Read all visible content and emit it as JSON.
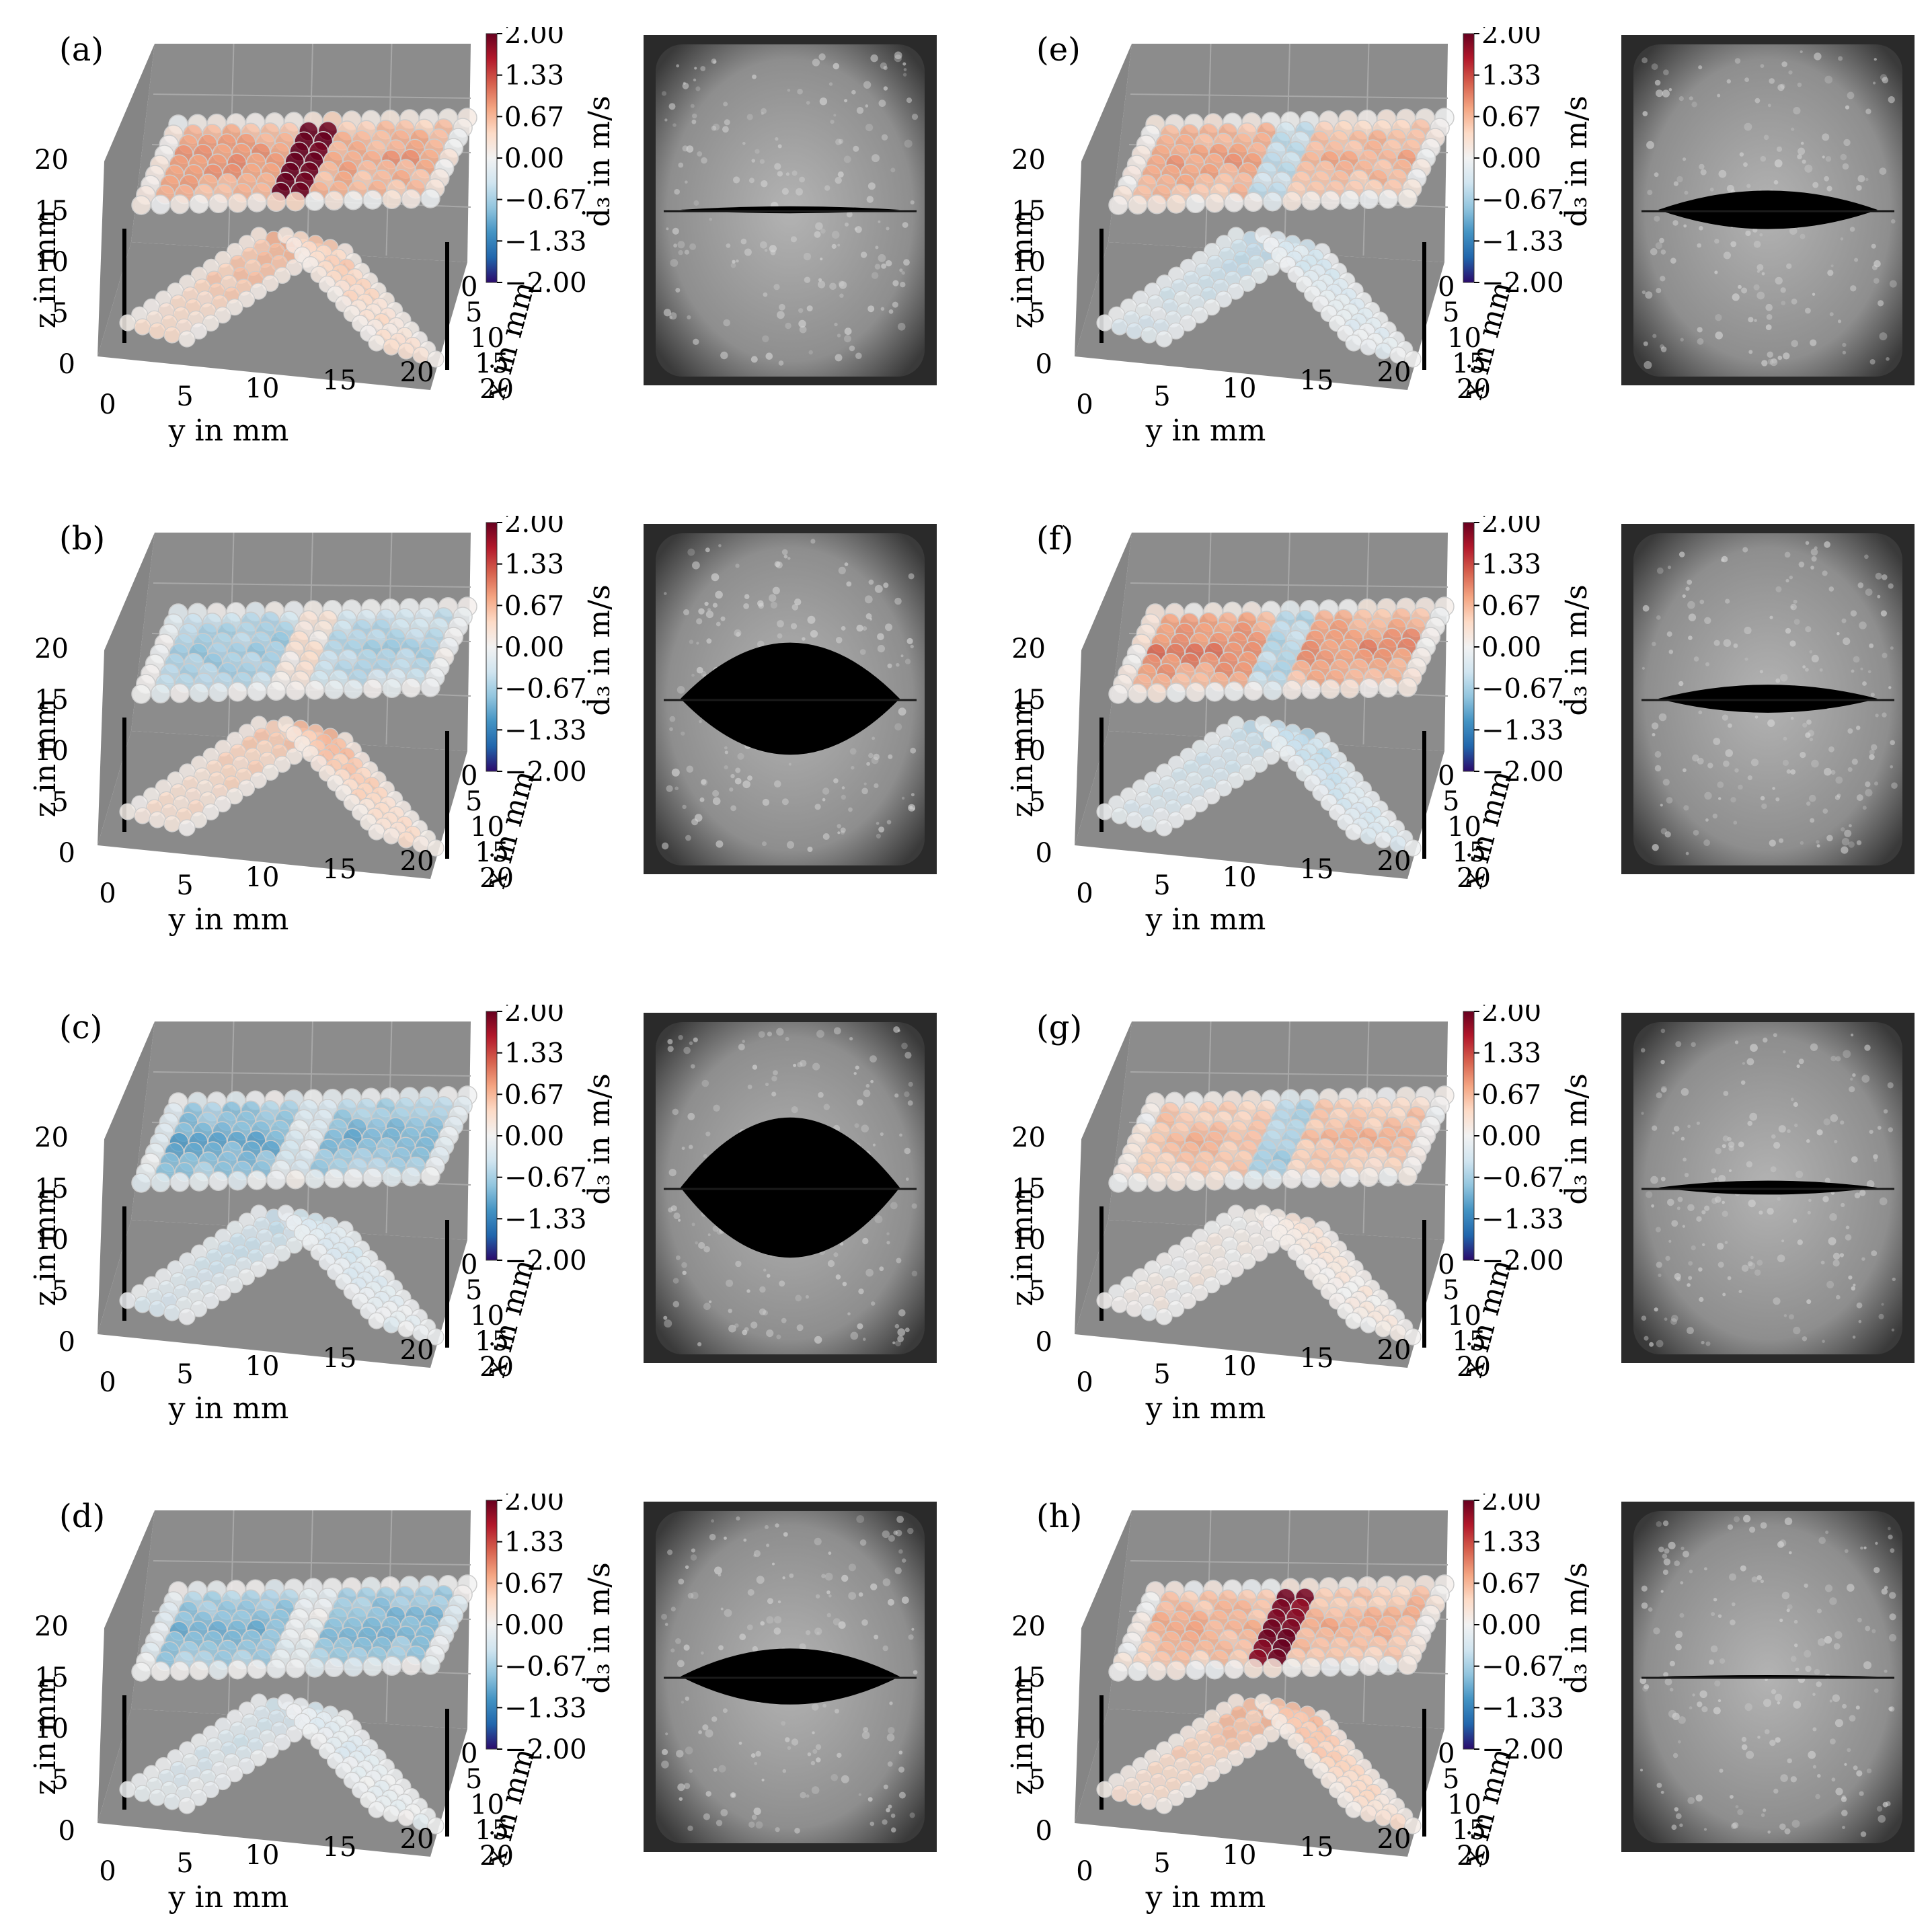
{
  "colormap": {
    "colors": [
      "#2b0a6b",
      "#2166ac",
      "#4393c3",
      "#92c5de",
      "#d1e5f0",
      "#f2f2f2",
      "#fddbc7",
      "#f4a582",
      "#d6604d",
      "#b2182b",
      "#67001f"
    ]
  },
  "chart_data": [
    {
      "panel": "(a)",
      "type": "scatter3d",
      "xlabel": "x in mm",
      "ylabel": "y in mm",
      "zlabel": "z in mm",
      "xticks": [
        "0",
        "5",
        "10",
        "15",
        "20"
      ],
      "yticks": [
        "0",
        "5",
        "10",
        "15",
        "20"
      ],
      "zticks": [
        "0",
        "5",
        "10",
        "15",
        "20"
      ],
      "colorbar": {
        "label": "ḋ₃ in m/s",
        "ticks": [
          "2.00",
          "1.33",
          "0.67",
          "0.00",
          "−0.67",
          "−1.33",
          "−2.00"
        ],
        "range": [
          -2,
          2
        ]
      },
      "values": {
        "top_left": 0.9,
        "top_right": 0.8,
        "center": 2.0,
        "low_left": 0.6,
        "low_right": 0.5
      },
      "photo": {
        "gap": 0.02
      }
    },
    {
      "panel": "(b)",
      "type": "scatter3d",
      "xlabel": "x in mm",
      "ylabel": "y in mm",
      "zlabel": "z in mm",
      "xticks": [
        "0",
        "5",
        "10",
        "15",
        "20"
      ],
      "yticks": [
        "0",
        "5",
        "10",
        "15",
        "20"
      ],
      "zticks": [
        "0",
        "5",
        "10",
        "15",
        "20"
      ],
      "colorbar": {
        "label": "ḋ₃ in m/s",
        "ticks": [
          "2.00",
          "1.33",
          "0.67",
          "0.00",
          "−0.67",
          "−1.33",
          "−2.00"
        ],
        "range": [
          -2,
          2
        ]
      },
      "values": {
        "top_left": -0.7,
        "top_right": -0.6,
        "center": 0.2,
        "low_left": 0.5,
        "low_right": 0.6
      },
      "photo": {
        "gap": 0.32
      }
    },
    {
      "panel": "(c)",
      "type": "scatter3d",
      "xlabel": "x in mm",
      "ylabel": "y in mm",
      "zlabel": "z in mm",
      "xticks": [
        "0",
        "5",
        "10",
        "15",
        "20"
      ],
      "yticks": [
        "0",
        "5",
        "10",
        "15",
        "20"
      ],
      "zticks": [
        "0",
        "5",
        "10",
        "15",
        "20"
      ],
      "colorbar": {
        "label": "ḋ₃ in m/s",
        "ticks": [
          "2.00",
          "1.33",
          "0.67",
          "0.00",
          "−0.67",
          "−1.33",
          "−2.00"
        ],
        "range": [
          -2,
          2
        ]
      },
      "values": {
        "top_left": -1.0,
        "top_right": -0.9,
        "center": -0.2,
        "low_left": -0.4,
        "low_right": -0.3
      },
      "photo": {
        "gap": 0.4
      }
    },
    {
      "panel": "(d)",
      "type": "scatter3d",
      "xlabel": "x in mm",
      "ylabel": "y in mm",
      "zlabel": "z in mm",
      "xticks": [
        "0",
        "5",
        "10",
        "15",
        "20"
      ],
      "yticks": [
        "0",
        "5",
        "10",
        "15",
        "20"
      ],
      "zticks": [
        "0",
        "5",
        "10",
        "15",
        "20"
      ],
      "colorbar": {
        "label": "ḋ₃ in m/s",
        "ticks": [
          "2.00",
          "1.33",
          "0.67",
          "0.00",
          "−0.67",
          "−1.33",
          "−2.00"
        ],
        "range": [
          -2,
          2
        ]
      },
      "values": {
        "top_left": -0.9,
        "top_right": -0.9,
        "center": -0.1,
        "low_left": -0.3,
        "low_right": -0.2
      },
      "photo": {
        "gap": 0.16
      }
    },
    {
      "panel": "(e)",
      "type": "scatter3d",
      "xlabel": "x in mm",
      "ylabel": "y in mm",
      "zlabel": "z in mm",
      "xticks": [
        "0",
        "5",
        "10",
        "15",
        "20"
      ],
      "yticks": [
        "0",
        "5",
        "10",
        "15",
        "20"
      ],
      "zticks": [
        "0",
        "5",
        "10",
        "15",
        "20"
      ],
      "colorbar": {
        "label": "ḋ₃ in m/s",
        "ticks": [
          "2.00",
          "1.33",
          "0.67",
          "0.00",
          "−0.67",
          "−1.33",
          "−2.00"
        ],
        "range": [
          -2,
          2
        ]
      },
      "values": {
        "top_left": 0.8,
        "top_right": 0.7,
        "center": -0.4,
        "low_left": -0.4,
        "low_right": -0.3
      },
      "photo": {
        "gap": 0.11
      }
    },
    {
      "panel": "(f)",
      "type": "scatter3d",
      "xlabel": "x in mm",
      "ylabel": "y in mm",
      "zlabel": "z in mm",
      "xticks": [
        "0",
        "5",
        "10",
        "15",
        "20"
      ],
      "yticks": [
        "0",
        "5",
        "10",
        "15",
        "20"
      ],
      "zticks": [
        "0",
        "5",
        "10",
        "15",
        "20"
      ],
      "colorbar": {
        "label": "ḋ₃ in m/s",
        "ticks": [
          "2.00",
          "1.33",
          "0.67",
          "0.00",
          "−0.67",
          "−1.33",
          "−2.00"
        ],
        "range": [
          -2,
          2
        ]
      },
      "values": {
        "top_left": 1.0,
        "top_right": 0.9,
        "center": -0.5,
        "low_left": -0.4,
        "low_right": -0.5
      },
      "photo": {
        "gap": 0.08
      }
    },
    {
      "panel": "(g)",
      "type": "scatter3d",
      "xlabel": "x in mm",
      "ylabel": "y in mm",
      "zlabel": "z in mm",
      "xticks": [
        "0",
        "5",
        "10",
        "15",
        "20"
      ],
      "yticks": [
        "0",
        "5",
        "10",
        "15",
        "20"
      ],
      "zticks": [
        "0",
        "5",
        "10",
        "15",
        "20"
      ],
      "colorbar": {
        "label": "ḋ₃ in m/s",
        "ticks": [
          "2.00",
          "1.33",
          "0.67",
          "0.00",
          "−0.67",
          "−1.33",
          "−2.00"
        ],
        "range": [
          -2,
          2
        ]
      },
      "values": {
        "top_left": 0.6,
        "top_right": 0.6,
        "center": -0.6,
        "low_left": 0.1,
        "low_right": 0.2
      },
      "photo": {
        "gap": 0.04
      }
    },
    {
      "panel": "(h)",
      "type": "scatter3d",
      "xlabel": "x in mm",
      "ylabel": "y in mm",
      "zlabel": "z in mm",
      "xticks": [
        "0",
        "5",
        "10",
        "15",
        "20"
      ],
      "yticks": [
        "0",
        "5",
        "10",
        "15",
        "20"
      ],
      "zticks": [
        "0",
        "5",
        "10",
        "15",
        "20"
      ],
      "colorbar": {
        "label": "ḋ₃ in m/s",
        "ticks": [
          "2.00",
          "1.33",
          "0.67",
          "0.00",
          "−0.67",
          "−1.33",
          "−2.00"
        ],
        "range": [
          -2,
          2
        ]
      },
      "values": {
        "top_left": 0.7,
        "top_right": 0.7,
        "center": 1.9,
        "low_left": 0.6,
        "low_right": 0.6
      },
      "photo": {
        "gap": 0.0
      }
    }
  ]
}
